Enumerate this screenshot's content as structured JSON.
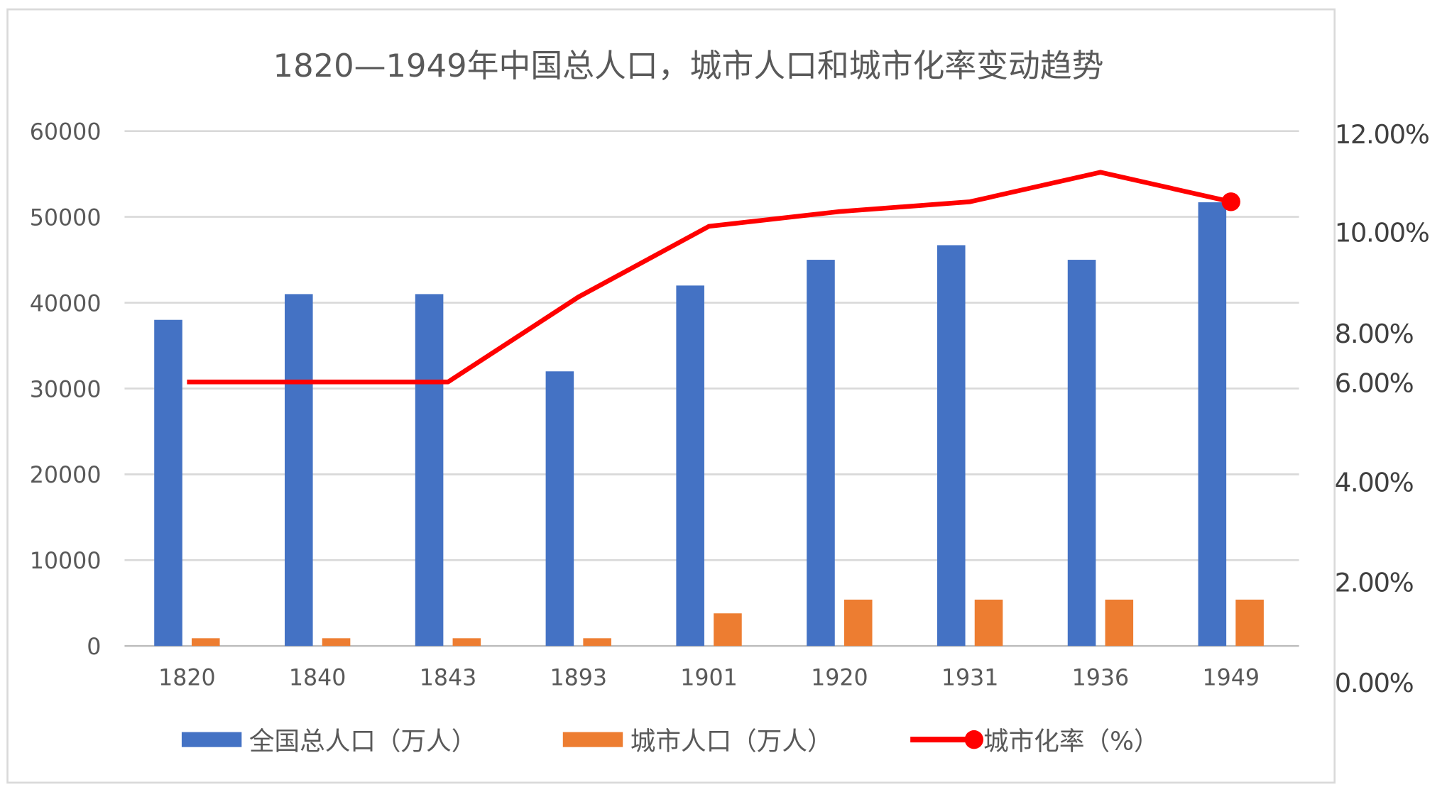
{
  "chart_data": {
    "type": "bar+line",
    "title": "1820—1949年中国总人口，城市人口和城市化率变动趋势",
    "categories": [
      "1820",
      "1840",
      "1843",
      "1893",
      "1901",
      "1920",
      "1931",
      "1936",
      "1949"
    ],
    "series": [
      {
        "name": "全国总人口（万人）",
        "type": "bar",
        "axis": "left",
        "color": "#4472C4",
        "values": [
          38000,
          41000,
          41000,
          32000,
          42000,
          45000,
          46700,
          45000,
          51700
        ]
      },
      {
        "name": "城市人口（万人）",
        "type": "bar",
        "axis": "left",
        "color": "#ED7D31",
        "values": [
          900,
          900,
          900,
          900,
          3800,
          5400,
          5400,
          5400,
          5400
        ]
      },
      {
        "name": "城市化率（%）",
        "type": "line",
        "axis": "right",
        "color": "#FF0000",
        "values": [
          6.0,
          6.0,
          6.0,
          8.7,
          10.1,
          10.4,
          10.6,
          11.2,
          10.6
        ]
      }
    ],
    "left_axis": {
      "ticks": [
        "60000",
        "50000",
        "40000",
        "30000",
        "20000",
        "10000",
        "0"
      ],
      "ylim": [
        0,
        60000
      ]
    },
    "right_axis": {
      "ticks": [
        "12.00%",
        "10.00%",
        "8.00%",
        "6.00%",
        "4.00%",
        "2.00%",
        "0.00%"
      ],
      "ylim": [
        0,
        12
      ]
    },
    "grid": true,
    "legend_position": "bottom"
  }
}
